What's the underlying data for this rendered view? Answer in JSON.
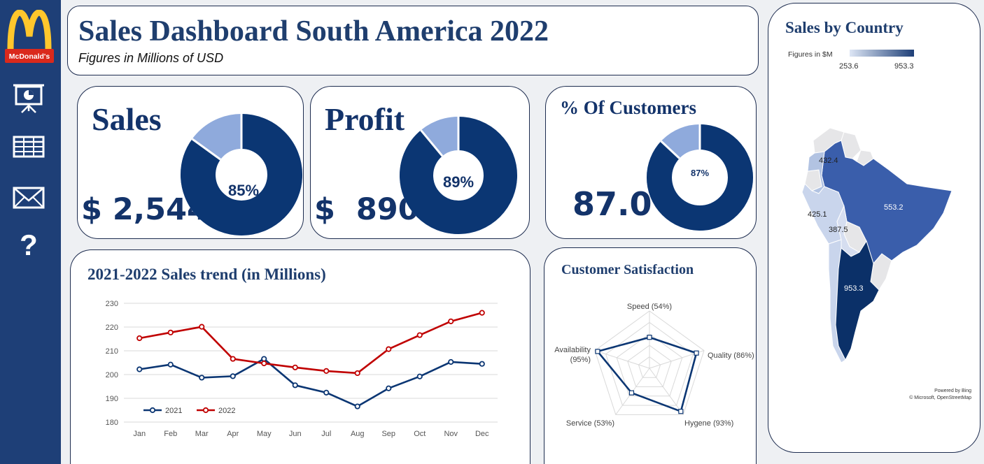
{
  "brand": {
    "name": "McDonald's"
  },
  "sidebar": {
    "icons": [
      {
        "name": "presentation-icon"
      },
      {
        "name": "table-icon"
      },
      {
        "name": "mail-icon"
      },
      {
        "name": "help-icon",
        "glyph": "?"
      }
    ]
  },
  "header": {
    "title": "Sales Dashboard South America 2022",
    "subtitle": "Figures in Millions of USD"
  },
  "kpis": {
    "sales": {
      "title": "Sales",
      "value": "$ 2,544",
      "percent": 85,
      "percent_label": "85%"
    },
    "profit": {
      "title": "Profit",
      "value": "$  890",
      "percent": 89,
      "percent_label": "89%"
    },
    "customers": {
      "title": "% Of Customers",
      "value": "87.0",
      "percent": 87,
      "percent_label": "87%"
    }
  },
  "colors": {
    "primary": "#0b3673",
    "light": "#8faadc",
    "red": "#c00000",
    "sidebar": "#1e3f77"
  },
  "chart_data": [
    {
      "type": "line",
      "title": "2021-2022 Sales trend (in Millions)",
      "categories": [
        "Jan",
        "Feb",
        "Mar",
        "Apr",
        "May",
        "Jun",
        "Jul",
        "Aug",
        "Sep",
        "Oct",
        "Nov",
        "Dec"
      ],
      "ylim": [
        180,
        230
      ],
      "yticks": [
        "180",
        "190",
        "200",
        "210",
        "220",
        "230"
      ],
      "grid": true,
      "legend": "bottom-left",
      "series": [
        {
          "name": "2021",
          "color": "#0b3673",
          "values": [
            202.2,
            204.2,
            198.7,
            199.3,
            206.6,
            195.5,
            192.4,
            186.6,
            194.2,
            199.2,
            205.3,
            204.5
          ]
        },
        {
          "name": "2022",
          "color": "#c00000",
          "values": [
            215.3,
            217.7,
            220.1,
            206.6,
            204.7,
            203.0,
            201.5,
            200.6,
            210.7,
            216.6,
            222.4,
            226.0
          ]
        }
      ]
    },
    {
      "type": "radar",
      "title": "Customer Satisfaction",
      "categories": [
        "Speed (54%)",
        "Quality (86%)",
        "Hygene (93%)",
        "Service (53%)",
        "Availability (95%)"
      ],
      "values": [
        54,
        86,
        93,
        53,
        95
      ],
      "ylim": [
        0,
        100
      ]
    },
    {
      "type": "map",
      "title": "Sales by Country",
      "legend_title": "Figures in $M",
      "legend_min": "253.6",
      "legend_max": "953.3",
      "labels": [
        "432.4",
        "553.2",
        "425.1",
        "387.5",
        "953.3"
      ],
      "attribution": [
        "Powered by Bing",
        "© Microsoft, OpenStreetMap"
      ]
    }
  ]
}
